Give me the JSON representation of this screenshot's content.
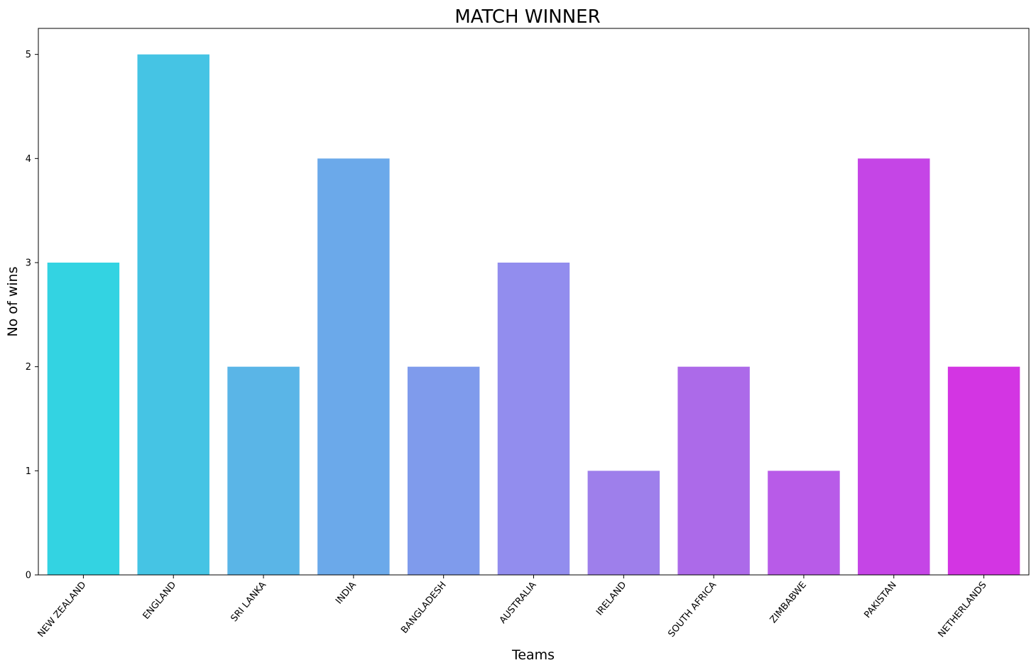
{
  "chart_data": {
    "type": "bar",
    "title": "MATCH WINNER",
    "xlabel": "Teams",
    "ylabel": "No of wins",
    "categories": [
      "NEW ZEALAND",
      "ENGLAND",
      "SRI LANKA",
      "INDIA",
      "BANGLADESH",
      "AUSTRALIA",
      "IRELAND",
      "SOUTH AFRICA",
      "ZIMBABWE",
      "PAKISTAN",
      "NETHERLANDS"
    ],
    "values": [
      3,
      5,
      2,
      4,
      2,
      3,
      1,
      2,
      1,
      4,
      2
    ],
    "colors": [
      "#33d3e2",
      "#45c4e4",
      "#5ab5e7",
      "#6ba9ea",
      "#7f9bec",
      "#928dee",
      "#9e7feb",
      "#ac6ae9",
      "#b85be8",
      "#c545e6",
      "#d335e3"
    ],
    "yticks": [
      0,
      1,
      2,
      3,
      4,
      5
    ],
    "ylim": [
      0,
      5.25
    ],
    "x_tick_rotation_deg": 50,
    "grid": false,
    "legend": "none"
  }
}
